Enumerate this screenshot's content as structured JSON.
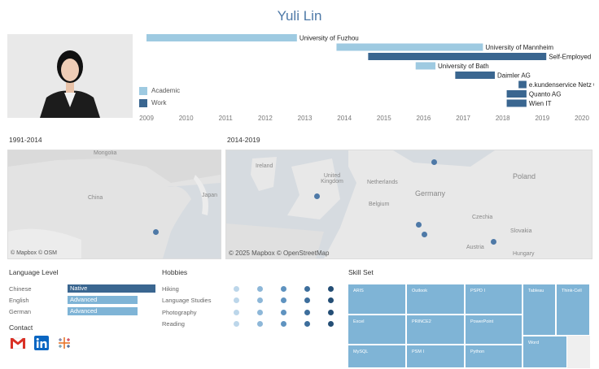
{
  "title": "Yuli Lin",
  "timeline": {
    "legend": [
      {
        "label": "Academic",
        "color": "#9ecae1"
      },
      {
        "label": "Work",
        "color": "#3a6690"
      }
    ],
    "ticks": [
      "2009",
      "2010",
      "2011",
      "2012",
      "2013",
      "2014",
      "2015",
      "2016",
      "2017",
      "2018",
      "2019",
      "2020"
    ],
    "entries": [
      {
        "label": "University of Fuzhou",
        "start": 2009.0,
        "end": 2012.8,
        "type": "Academic"
      },
      {
        "label": "University of Mannheim",
        "start": 2013.8,
        "end": 2017.5,
        "type": "Academic"
      },
      {
        "label": "Self-Employed",
        "start": 2014.6,
        "end": 2019.1,
        "type": "Work"
      },
      {
        "label": "University of Bath",
        "start": 2015.8,
        "end": 2016.3,
        "type": "Academic"
      },
      {
        "label": "Daimler AG",
        "start": 2016.8,
        "end": 2017.8,
        "type": "Work"
      },
      {
        "label": "e.kundenservice Netz GmbH",
        "start": 2018.4,
        "end": 2018.6,
        "type": "Work"
      },
      {
        "label": "Quanto AG",
        "start": 2018.1,
        "end": 2018.6,
        "type": "Work"
      },
      {
        "label": "Wien IT",
        "start": 2018.1,
        "end": 2018.6,
        "type": "Work"
      }
    ]
  },
  "map1": {
    "title": "1991-2014",
    "labels": [
      "Mongolia",
      "China",
      "Japan"
    ],
    "attribution": "© Mapbox  © OSM"
  },
  "map2": {
    "title": "2014-2019",
    "labels": [
      "Ireland",
      "United Kingdom",
      "Netherlands",
      "Belgium",
      "Germany",
      "Poland",
      "Czechia",
      "Slovakia",
      "Austria",
      "Hungary"
    ],
    "attribution": "© 2025 Mapbox  © OpenStreetMap"
  },
  "languages": {
    "title": "Language Level",
    "items": [
      {
        "name": "Chinese",
        "level": "Native",
        "value": 1.0,
        "color": "#3a6690"
      },
      {
        "name": "English",
        "level": "Advanced",
        "value": 0.8,
        "color": "#7fb4d6"
      },
      {
        "name": "German",
        "level": "Advanced",
        "value": 0.8,
        "color": "#7fb4d6"
      }
    ]
  },
  "contact": {
    "title": "Contact",
    "icons": [
      "gmail-icon",
      "linkedin-icon",
      "tableau-icon"
    ]
  },
  "hobbies": {
    "title": "Hobbies",
    "items": [
      {
        "name": "Hiking"
      },
      {
        "name": "Language Studies"
      },
      {
        "name": "Photography"
      },
      {
        "name": "Reading"
      }
    ],
    "dot_colors": [
      "#bcd6ea",
      "#8db7d8",
      "#5f93c0",
      "#3d6e9c",
      "#244e75"
    ]
  },
  "skills": {
    "title": "Skill Set",
    "items": [
      "ARIS",
      "Outlook",
      "PSPD I",
      "Tableau",
      "Think-Cell",
      "Excel",
      "PRINCE2",
      "PowerPoint",
      "MySQL",
      "PSM I",
      "Python",
      "Word"
    ]
  }
}
